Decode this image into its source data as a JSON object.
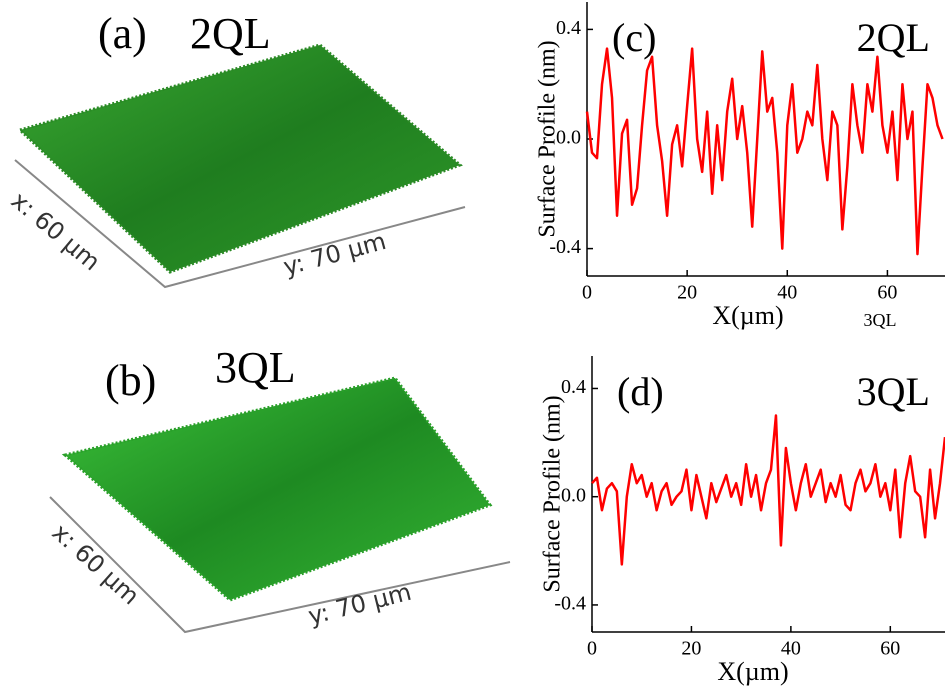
{
  "images": [
    {
      "label": "(a)",
      "title": "2QL",
      "x_label": "x: 60 µm",
      "y_label": "y: 70 µm"
    },
    {
      "label": "(b)",
      "title": "3QL",
      "x_label": "x: 60 µm",
      "y_label": "y: 70 µm"
    }
  ],
  "chart_data": [
    {
      "type": "line",
      "label": "(c)",
      "title": "2QL",
      "annotation": "3QL",
      "x_label": "X(µm)",
      "y_label": "Surface Profile (nm)",
      "color": "#ff0000",
      "xlim": [
        0,
        71.5
      ],
      "ylim": [
        -0.5,
        0.5
      ],
      "xticks": [
        0,
        20,
        40,
        60
      ],
      "yticks": [
        -0.4,
        {
          "value": 0,
          "label": "0.0"
        },
        0.4
      ],
      "x": [
        0,
        1,
        2,
        3,
        4,
        5,
        6,
        7,
        8,
        9,
        10,
        11,
        12,
        13,
        14,
        15,
        16,
        17,
        18,
        19,
        20,
        21,
        22,
        23,
        24,
        25,
        26,
        27,
        28,
        29,
        30,
        31,
        32,
        33,
        34,
        35,
        36,
        37,
        38,
        39,
        40,
        41,
        42,
        43,
        44,
        45,
        46,
        47,
        48,
        49,
        50,
        51,
        52,
        53,
        54,
        55,
        56,
        57,
        58,
        59,
        60,
        61,
        62,
        63,
        64,
        65,
        66,
        67,
        68,
        69,
        70,
        71
      ],
      "values": [
        0.1,
        -0.05,
        -0.07,
        0.2,
        0.33,
        0.15,
        -0.28,
        0.02,
        0.07,
        -0.24,
        -0.18,
        0.05,
        0.25,
        0.3,
        0.05,
        -0.08,
        -0.28,
        -0.02,
        0.05,
        -0.1,
        0.12,
        0.33,
        0.0,
        -0.12,
        0.1,
        -0.2,
        0.05,
        -0.15,
        0.1,
        0.22,
        0.0,
        0.12,
        -0.05,
        -0.32,
        0.0,
        0.32,
        0.1,
        0.15,
        -0.05,
        -0.4,
        0.05,
        0.2,
        -0.05,
        0.0,
        0.1,
        0.05,
        0.27,
        0.0,
        -0.15,
        0.1,
        0.05,
        -0.33,
        -0.1,
        0.2,
        0.05,
        -0.05,
        0.2,
        0.1,
        0.3,
        0.05,
        -0.05,
        0.1,
        -0.15,
        0.2,
        0.0,
        0.1,
        -0.42,
        -0.1,
        0.2,
        0.15,
        0.05,
        0.0
      ]
    },
    {
      "type": "line",
      "label": "(d)",
      "title": "3QL",
      "x_label": "X(µm)",
      "y_label": "Surface Profile (nm)",
      "color": "#ff0000",
      "xlim": [
        0,
        71
      ],
      "ylim": [
        -0.5,
        0.52
      ],
      "xticks": [
        0,
        20,
        40,
        60
      ],
      "yticks": [
        -0.4,
        {
          "value": 0,
          "label": "0.0"
        },
        0.4
      ],
      "x": [
        0,
        1,
        2,
        3,
        4,
        5,
        6,
        7,
        8,
        9,
        10,
        11,
        12,
        13,
        14,
        15,
        16,
        17,
        18,
        19,
        20,
        21,
        22,
        23,
        24,
        25,
        26,
        27,
        28,
        29,
        30,
        31,
        32,
        33,
        34,
        35,
        36,
        37,
        38,
        39,
        40,
        41,
        42,
        43,
        44,
        45,
        46,
        47,
        48,
        49,
        50,
        51,
        52,
        53,
        54,
        55,
        56,
        57,
        58,
        59,
        60,
        61,
        62,
        63,
        64,
        65,
        66,
        67,
        68,
        69,
        70,
        71
      ],
      "values": [
        0.05,
        0.07,
        -0.05,
        0.03,
        0.05,
        0.02,
        -0.25,
        0.0,
        0.12,
        0.05,
        0.08,
        0.0,
        0.05,
        -0.05,
        0.02,
        0.05,
        -0.03,
        0.0,
        0.02,
        0.1,
        -0.05,
        0.08,
        0.0,
        -0.08,
        0.05,
        -0.02,
        0.03,
        0.08,
        0.0,
        0.05,
        -0.03,
        0.12,
        0.0,
        0.08,
        -0.05,
        0.05,
        0.1,
        0.3,
        -0.18,
        0.18,
        0.05,
        -0.05,
        0.05,
        0.12,
        0.0,
        0.05,
        0.1,
        -0.02,
        0.05,
        0.0,
        0.08,
        -0.03,
        -0.05,
        0.05,
        0.1,
        0.02,
        0.05,
        0.12,
        0.0,
        0.05,
        -0.05,
        0.1,
        -0.15,
        0.05,
        0.15,
        0.02,
        0.0,
        -0.15,
        0.1,
        -0.08,
        0.05,
        0.22
      ]
    }
  ]
}
